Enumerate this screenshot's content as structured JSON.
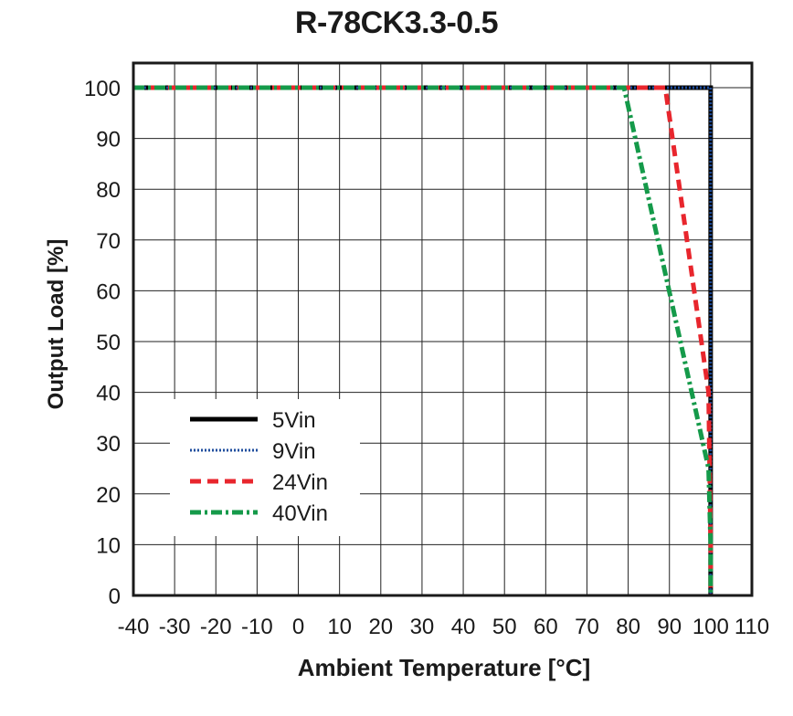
{
  "chart_data": {
    "type": "line",
    "title": "R-78CK3.3-0.5",
    "xlabel": "Ambient Temperature [°C]",
    "ylabel": "Output Load [%]",
    "xlim": [
      -40,
      110
    ],
    "ylim": [
      0,
      105
    ],
    "xticks": [
      -40,
      -30,
      -20,
      -10,
      0,
      10,
      20,
      30,
      40,
      50,
      60,
      70,
      80,
      90,
      100,
      110
    ],
    "yticks": [
      0,
      10,
      20,
      30,
      40,
      50,
      60,
      70,
      80,
      90,
      100
    ],
    "grid": true,
    "legend_position": "lower-left",
    "series": [
      {
        "name": "5Vin",
        "color": "#000000",
        "style": "solid",
        "x": [
          -40,
          100,
          100
        ],
        "y": [
          100,
          100,
          0
        ]
      },
      {
        "name": "9Vin",
        "color": "#1f4e9e",
        "style": "dotted",
        "x": [
          -40,
          100,
          100
        ],
        "y": [
          100,
          100,
          0
        ]
      },
      {
        "name": "24Vin",
        "color": "#e8262d",
        "style": "dashed",
        "x": [
          -40,
          89,
          99.5,
          100,
          100
        ],
        "y": [
          100,
          100,
          40,
          10,
          0
        ]
      },
      {
        "name": "40Vin",
        "color": "#159a4a",
        "style": "dashdot",
        "x": [
          -40,
          79,
          99.5,
          100,
          100
        ],
        "y": [
          100,
          100,
          25,
          10,
          0
        ]
      }
    ]
  }
}
